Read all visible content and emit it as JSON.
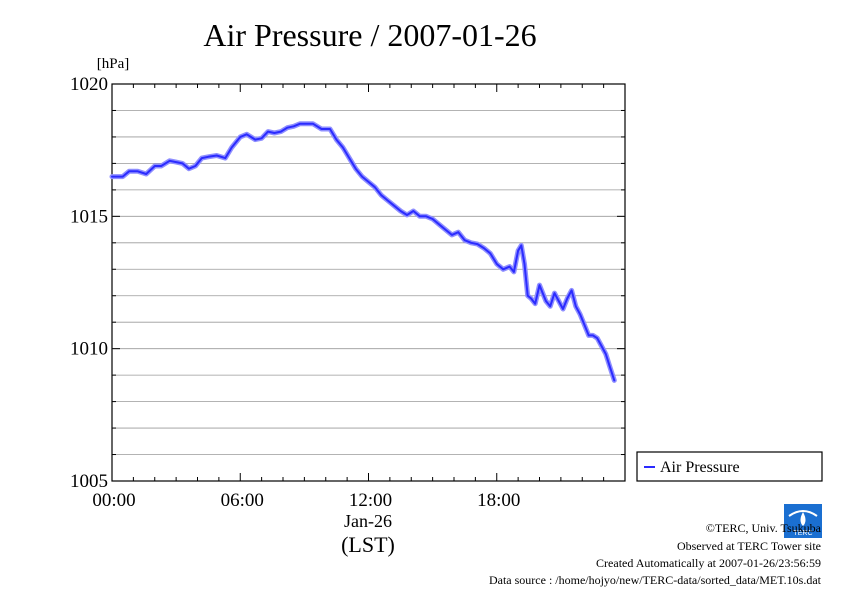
{
  "chart_data": {
    "type": "line",
    "title": "Air Pressure / 2007-01-26",
    "ylabel": "[hPa]",
    "xlabel": "(LST)",
    "date_label": "Jan-26",
    "ylim": [
      1005,
      1020
    ],
    "xlim_hours": [
      0,
      24
    ],
    "y_ticks": [
      {
        "value": 1005,
        "label": "1005"
      },
      {
        "value": 1010,
        "label": "1010"
      },
      {
        "value": 1015,
        "label": "1015"
      },
      {
        "value": 1020,
        "label": "1020"
      }
    ],
    "x_ticks": [
      {
        "value": 0,
        "label": "00:00"
      },
      {
        "value": 6,
        "label": "06:00"
      },
      {
        "value": 12,
        "label": "12:00"
      },
      {
        "value": 18,
        "label": "18:00"
      }
    ],
    "grid": true,
    "legend_position": "right",
    "series": [
      {
        "name": "Air Pressure",
        "color": "#2b2bff",
        "x": [
          0.0,
          0.5,
          0.8,
          1.2,
          1.6,
          2.0,
          2.3,
          2.7,
          3.0,
          3.3,
          3.6,
          3.9,
          4.2,
          4.5,
          4.9,
          5.3,
          5.6,
          6.0,
          6.3,
          6.7,
          7.0,
          7.3,
          7.6,
          7.9,
          8.2,
          8.5,
          8.8,
          9.1,
          9.4,
          9.8,
          10.2,
          10.5,
          10.8,
          11.1,
          11.4,
          11.7,
          12.0,
          12.3,
          12.6,
          12.9,
          13.2,
          13.5,
          13.8,
          14.1,
          14.4,
          14.7,
          15.0,
          15.3,
          15.6,
          15.9,
          16.2,
          16.5,
          16.8,
          17.1,
          17.4,
          17.7,
          18.0,
          18.3,
          18.6,
          18.8,
          19.0,
          19.15,
          19.3,
          19.45,
          19.6,
          19.8,
          20.0,
          20.15,
          20.3,
          20.5,
          20.7,
          20.9,
          21.1,
          21.3,
          21.5,
          21.7,
          21.9,
          22.1,
          22.3,
          22.5,
          22.7,
          22.9,
          23.1,
          23.3,
          23.5
        ],
        "values": [
          1016.5,
          1016.5,
          1016.7,
          1016.7,
          1016.6,
          1016.9,
          1016.9,
          1017.1,
          1017.05,
          1017.0,
          1016.8,
          1016.9,
          1017.2,
          1017.25,
          1017.3,
          1017.2,
          1017.6,
          1018.0,
          1018.1,
          1017.9,
          1017.95,
          1018.2,
          1018.15,
          1018.2,
          1018.35,
          1018.4,
          1018.5,
          1018.5,
          1018.5,
          1018.3,
          1018.3,
          1017.9,
          1017.6,
          1017.2,
          1016.8,
          1016.5,
          1016.3,
          1016.1,
          1015.8,
          1015.6,
          1015.4,
          1015.2,
          1015.05,
          1015.2,
          1015.0,
          1015.0,
          1014.9,
          1014.7,
          1014.5,
          1014.3,
          1014.4,
          1014.1,
          1014.0,
          1013.95,
          1013.8,
          1013.6,
          1013.2,
          1013.0,
          1013.1,
          1012.9,
          1013.7,
          1013.9,
          1013.2,
          1012.0,
          1011.9,
          1011.7,
          1012.4,
          1012.1,
          1011.8,
          1011.6,
          1012.1,
          1011.8,
          1011.5,
          1011.9,
          1012.2,
          1011.6,
          1011.3,
          1010.9,
          1010.5,
          1010.5,
          1010.4,
          1010.1,
          1009.8,
          1009.3,
          1008.8
        ]
      }
    ]
  },
  "credits": [
    "©TERC, Univ. Tsukuba",
    "Observed at TERC Tower site",
    "Created Automatically at 2007-01-26/23:56:59",
    "Data source : /home/hojyo/new/TERC-data/sorted_data/MET.10s.dat"
  ],
  "logo": {
    "text": "TERC",
    "color": "#1a6fd1"
  }
}
